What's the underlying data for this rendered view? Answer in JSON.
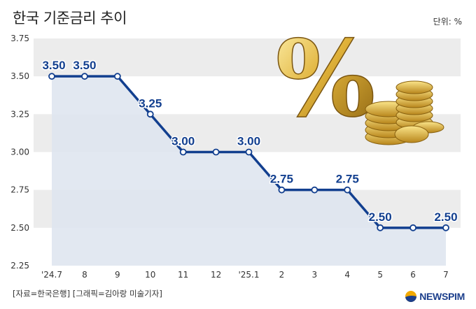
{
  "header": {
    "title": "한국 기준금리 추이",
    "unit": "단위: %"
  },
  "footer": {
    "source": "[자료=한국은행] [그래픽=김아랑 미술기자]",
    "logo_text": "NEWSPIM"
  },
  "illustration": {
    "glyph": "%",
    "icon": "percent-and-gold-coins-icon"
  },
  "colors": {
    "line": "#123f8f",
    "area": "#dfe5ef",
    "band": "#ececec",
    "label": "#123f8f"
  },
  "chart_data": {
    "type": "line",
    "title": "한국 기준금리 추이",
    "xlabel": "",
    "ylabel": "",
    "unit": "%",
    "categories": [
      "'24.7",
      "8",
      "9",
      "10",
      "11",
      "12",
      "'25.1",
      "2",
      "3",
      "4",
      "5",
      "6",
      "7"
    ],
    "values": [
      3.5,
      3.5,
      3.5,
      3.25,
      3.0,
      3.0,
      3.0,
      2.75,
      2.75,
      2.75,
      2.5,
      2.5,
      2.5
    ],
    "point_labels": [
      {
        "index": 0,
        "text": "3.50"
      },
      {
        "index": 1,
        "text": "3.50"
      },
      {
        "index": 3,
        "text": "3.25"
      },
      {
        "index": 4,
        "text": "3.00"
      },
      {
        "index": 6,
        "text": "3.00"
      },
      {
        "index": 7,
        "text": "2.75"
      },
      {
        "index": 9,
        "text": "2.75"
      },
      {
        "index": 10,
        "text": "2.50"
      },
      {
        "index": 12,
        "text": "2.50"
      }
    ],
    "yticks": [
      "2.25",
      "2.50",
      "2.75",
      "3.00",
      "3.25",
      "3.50",
      "3.75"
    ],
    "ylim": [
      2.25,
      3.75
    ],
    "grid": "alternating horizontal bands"
  }
}
